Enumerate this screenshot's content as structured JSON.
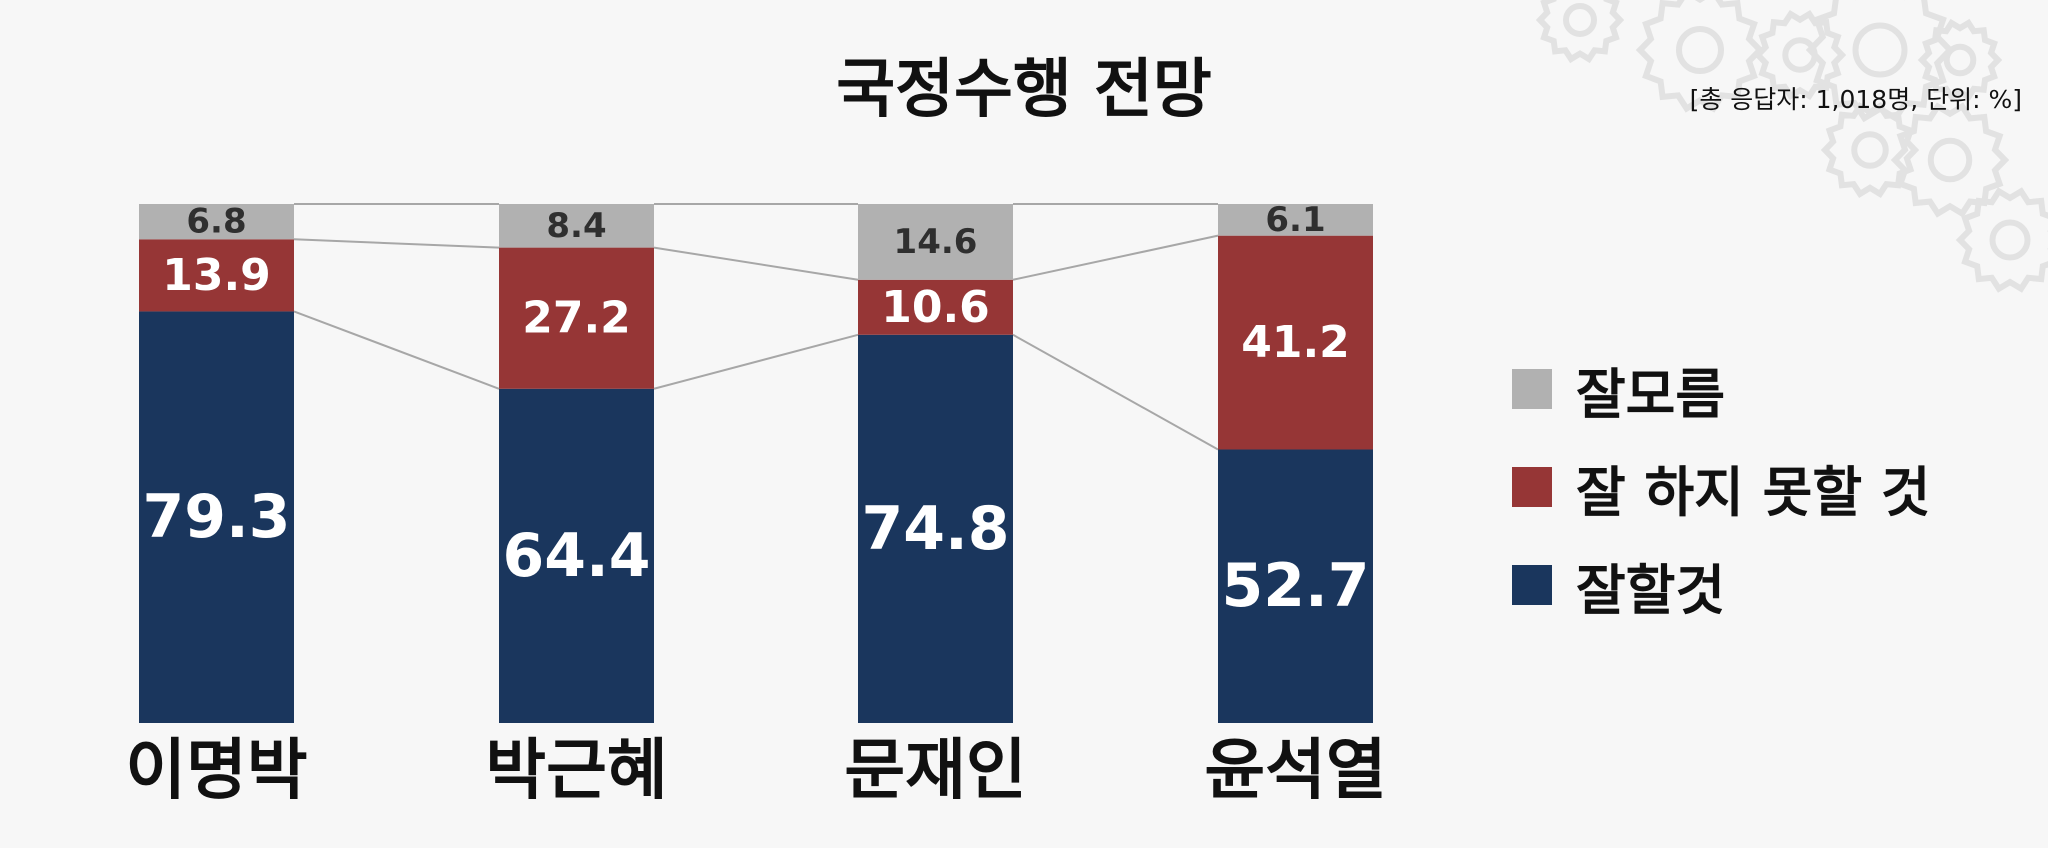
{
  "title": "국정수행 전망",
  "note": "[총 응답자: 1,018명, 단위: %]",
  "colors": {
    "unknown": "#b1b1b1",
    "negative": "#963636",
    "positive": "#1a365d",
    "connector": "#a7a7a7"
  },
  "legend": [
    {
      "label": "잘모름",
      "color": "#b1b1b1"
    },
    {
      "label": "잘 하지 못할 것",
      "color": "#963636"
    },
    {
      "label": "잘할것",
      "color": "#1a365d"
    }
  ],
  "chart_data": {
    "type": "bar",
    "stacked": true,
    "title": "국정수행 전망",
    "categories": [
      "이명박",
      "박근혜",
      "문재인",
      "윤석열"
    ],
    "series": [
      {
        "name": "잘할것",
        "values": [
          79.3,
          64.4,
          74.8,
          52.7
        ],
        "color": "#1a365d"
      },
      {
        "name": "잘 하지 못할 것",
        "values": [
          13.9,
          27.2,
          10.6,
          41.2
        ],
        "color": "#963636"
      },
      {
        "name": "잘모름",
        "values": [
          6.8,
          8.4,
          14.6,
          6.1
        ],
        "color": "#b1b1b1"
      }
    ],
    "ylim": [
      0,
      100
    ],
    "grid": false,
    "legend_position": "right"
  }
}
